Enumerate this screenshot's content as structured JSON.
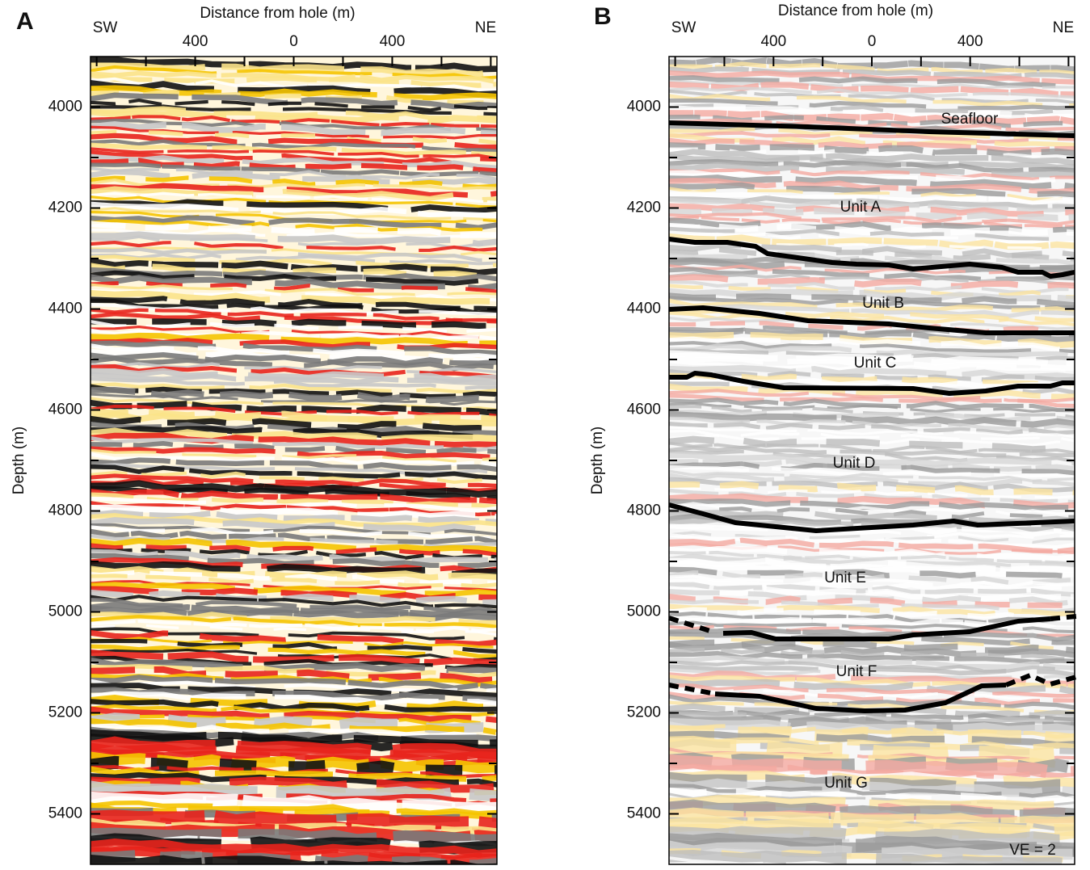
{
  "chart_data": [
    {
      "type": "seismic",
      "panel": "A",
      "x_label": "Distance from hole (m)",
      "y_label": "Depth (m)",
      "left_label": "SW",
      "right_label": "NE",
      "xlim": [
        -825,
        825
      ],
      "xticks": [
        {
          "value": -400,
          "label": "400"
        },
        0,
        400
      ],
      "xminor": [
        -800,
        -600,
        -200,
        200,
        600,
        800
      ],
      "ylim": [
        3900,
        5500
      ],
      "yticks": [
        4000,
        4200,
        4400,
        4600,
        4800,
        5000,
        5200,
        5400
      ],
      "yminor": [
        4100,
        4300,
        4500,
        4700,
        4900,
        5100,
        5300
      ],
      "palette": [
        "#111111",
        "#e8231c",
        "#f5c400",
        "#fbe38a",
        "#7a7a7a",
        "#c8c8c8",
        "#ffffff"
      ]
    },
    {
      "type": "seismic",
      "panel": "B",
      "x_label": "Distance from hole (m)",
      "y_label": "Depth (m)",
      "left_label": "SW",
      "right_label": "NE",
      "xlim": [
        -825,
        825
      ],
      "xticks": [
        {
          "value": -400,
          "label": "400"
        },
        0,
        400
      ],
      "xminor": [
        -800,
        -600,
        -200,
        200,
        600,
        800
      ],
      "ylim": [
        3900,
        5500
      ],
      "yticks": [
        4000,
        4200,
        4400,
        4600,
        4800,
        5000,
        5200,
        5400
      ],
      "yminor": [
        4100,
        4300,
        4500,
        4700,
        4900,
        5100,
        5300
      ],
      "palette": [
        "#9a9a9a",
        "#f4a9a0",
        "#fbe4a0",
        "#d6d6d6",
        "#ffffff",
        "#bdbdbd"
      ],
      "annotations": [
        "Seafloor",
        "Unit A",
        "Unit B",
        "Unit C",
        "Unit D",
        "Unit E",
        "Unit F",
        "Unit G"
      ],
      "note": "VE = 2"
    }
  ]
}
